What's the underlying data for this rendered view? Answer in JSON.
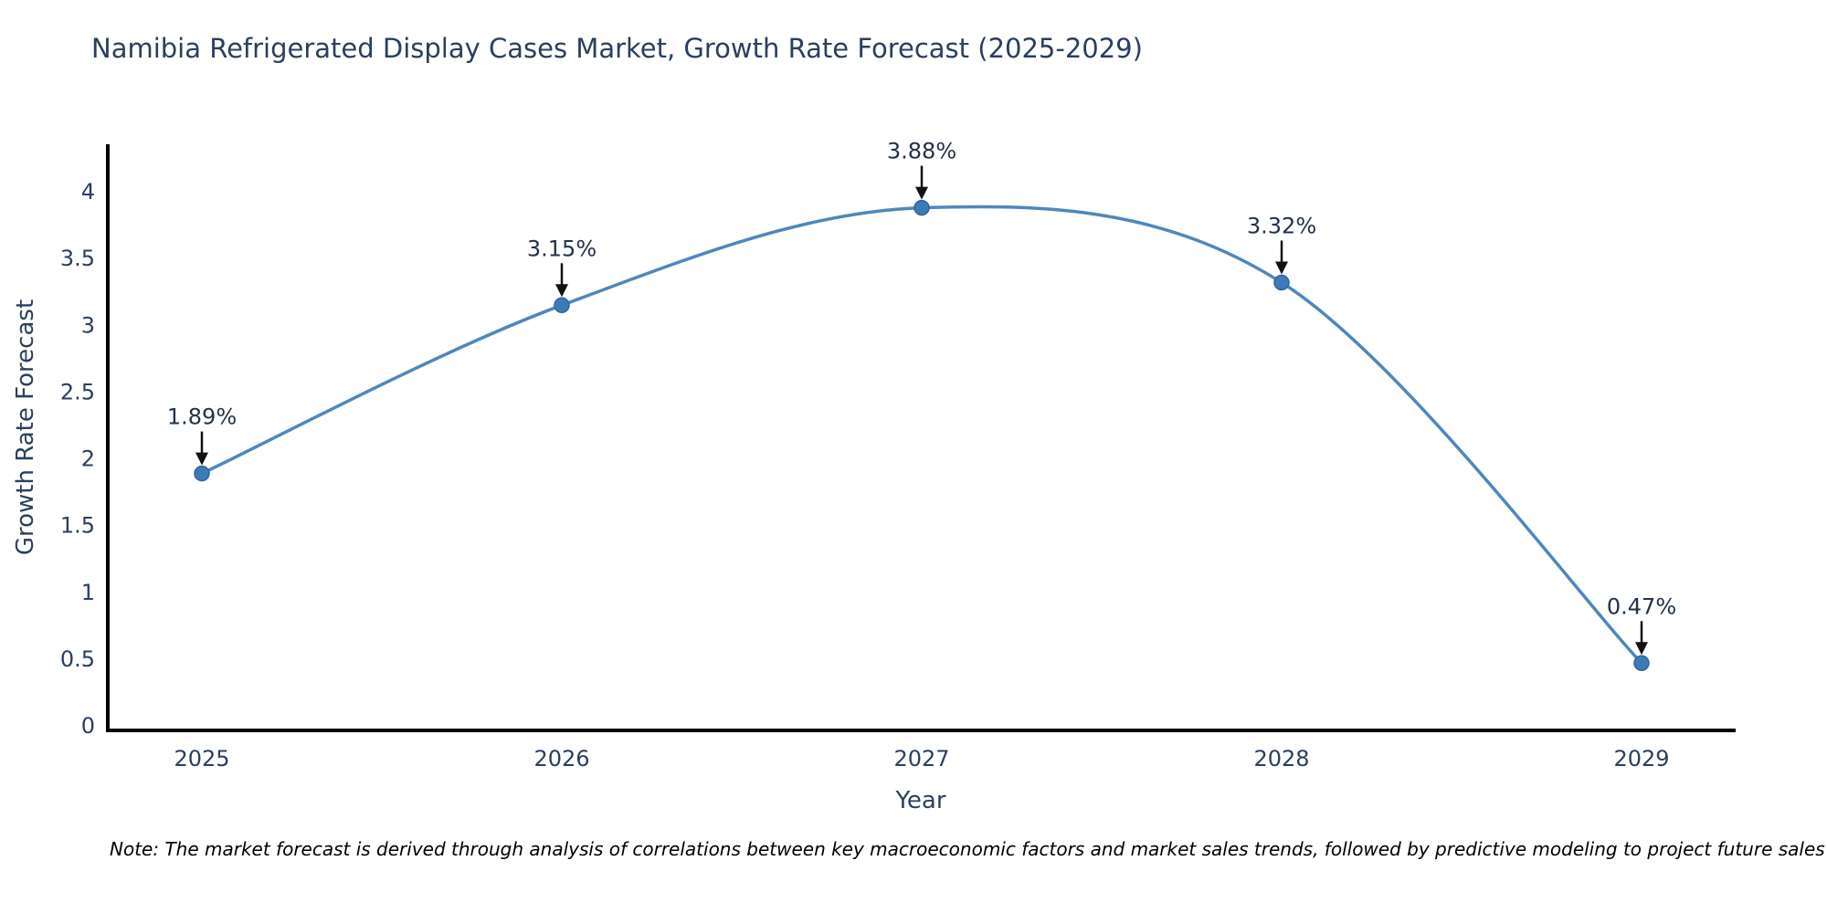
{
  "note": "Note: The market forecast is derived through analysis of correlations between key macroeconomic factors and market sales trends, followed by predictive modeling to project future sales",
  "colors": {
    "background": "#ffffff",
    "axis": "#000000",
    "text": "#2a3f5f",
    "annotation": "#223247",
    "arrow": "#111111",
    "line": "#4e87bd",
    "marker": "#3d7ab8",
    "marker_edge": "#2d669e"
  },
  "chart_data": {
    "type": "line",
    "title": "Namibia Refrigerated Display Cases Market, Growth Rate Forecast (2025-2029)",
    "xlabel": "Year",
    "ylabel": "Growth Rate Forecast",
    "x": [
      2025,
      2026,
      2027,
      2028,
      2029
    ],
    "xticks": [
      "2025",
      "2026",
      "2027",
      "2028",
      "2029"
    ],
    "values": [
      1.89,
      3.15,
      3.88,
      3.32,
      0.47
    ],
    "labels": [
      "1.89%",
      "3.15%",
      "3.88%",
      "3.32%",
      "0.47%"
    ],
    "yticks": [
      "0",
      "0.5",
      "1",
      "1.5",
      "2",
      "2.5",
      "3",
      "3.5",
      "4"
    ],
    "ylim": [
      0,
      4.35
    ],
    "line_shape": "spline",
    "grid": false,
    "legend": false
  }
}
